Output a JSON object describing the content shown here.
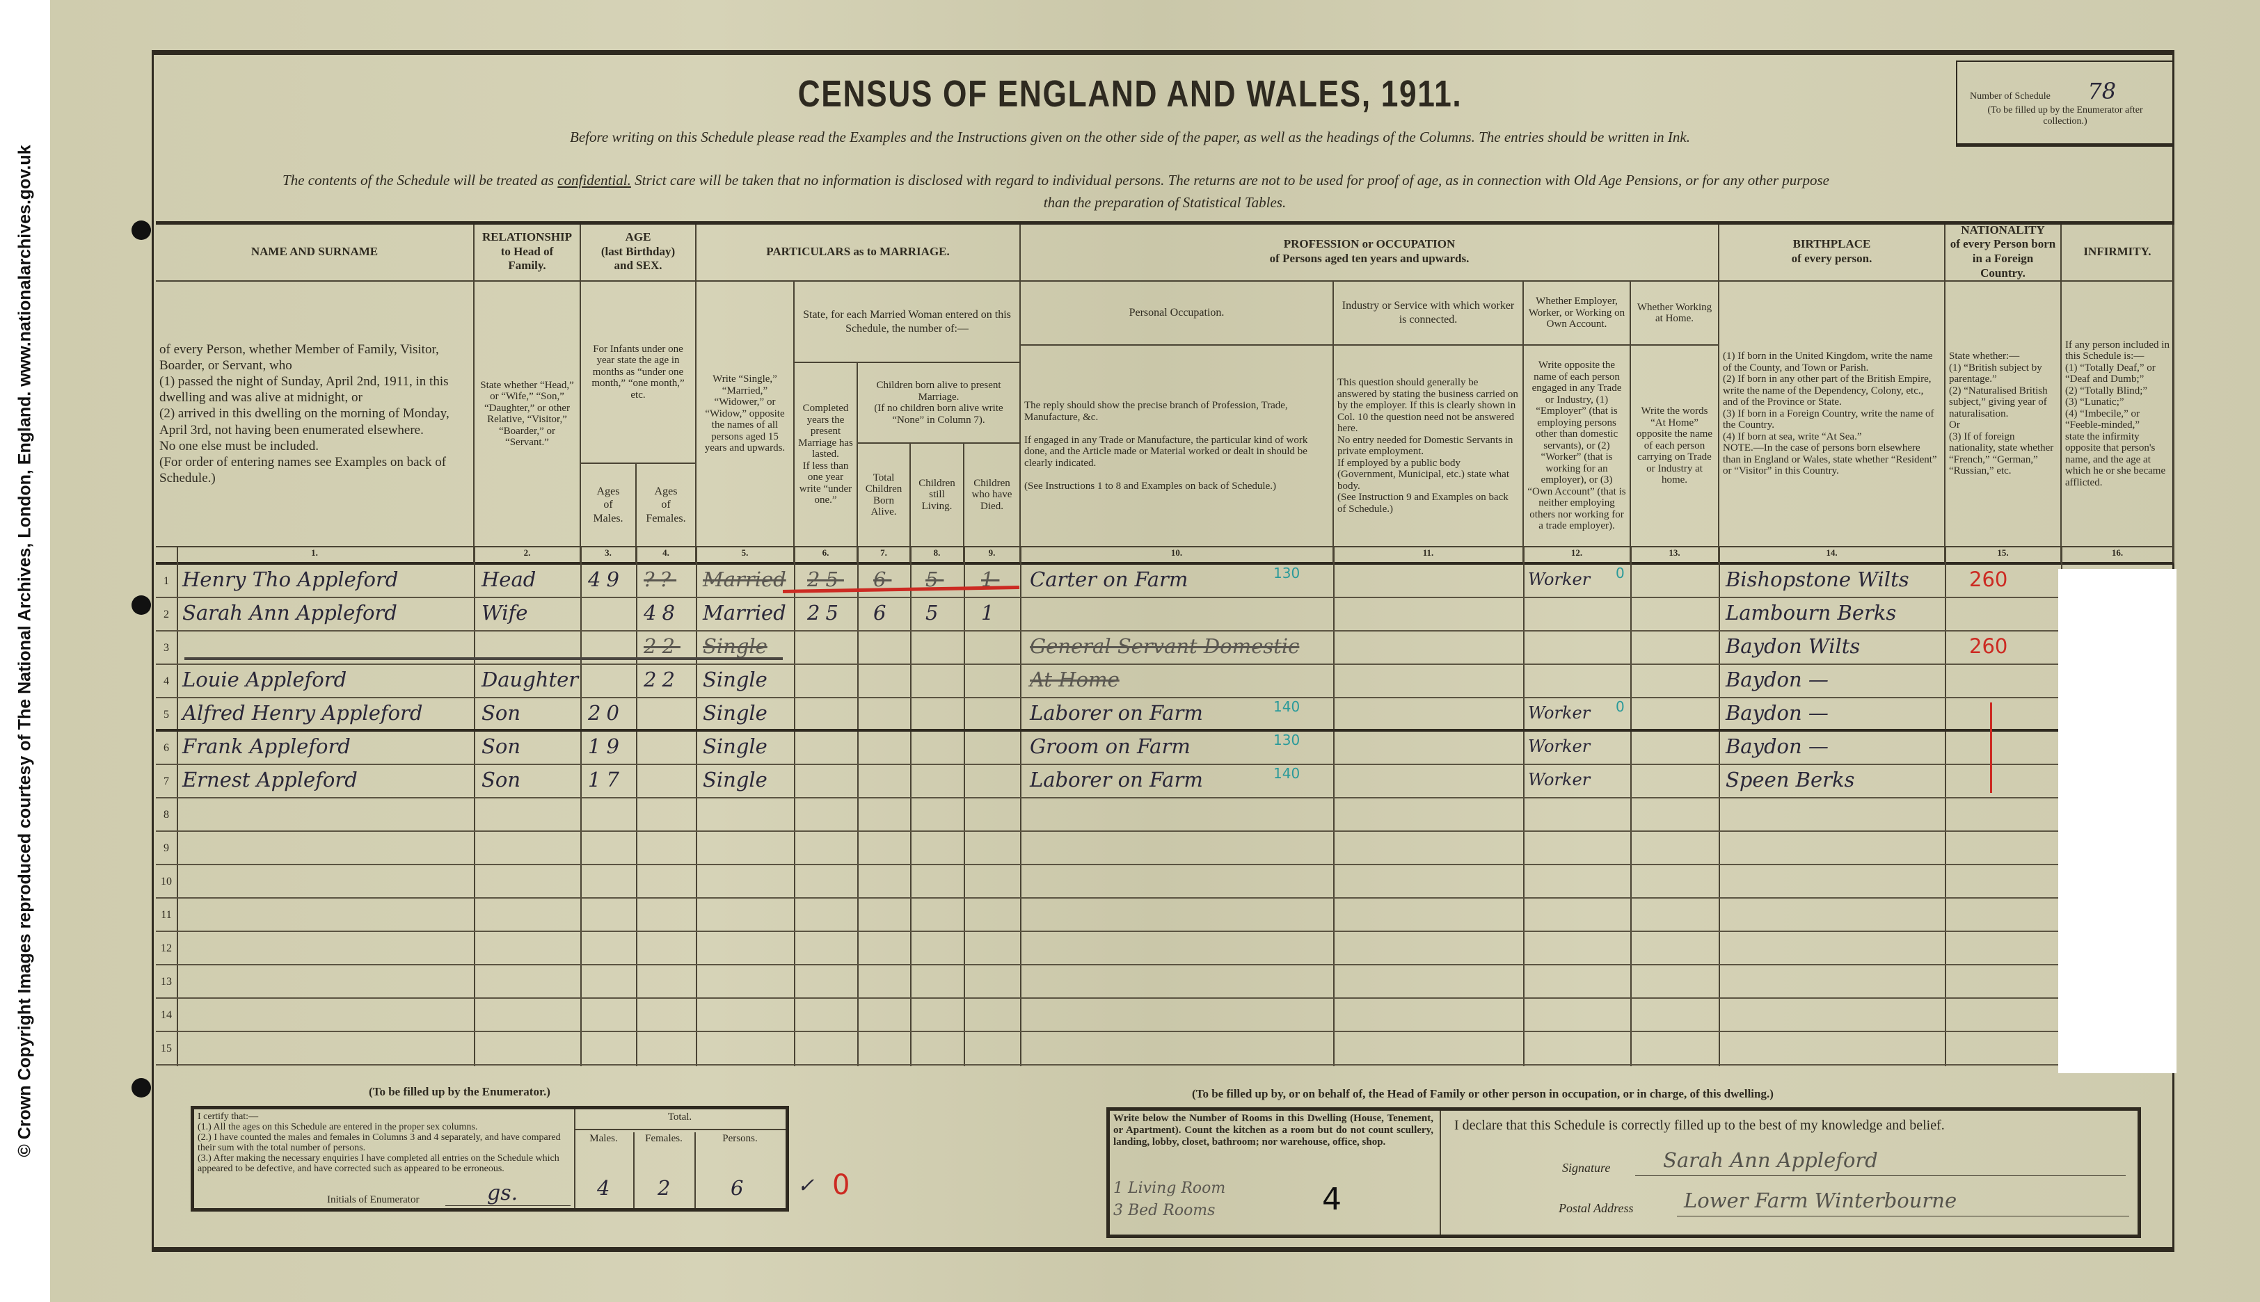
{
  "watermark": "© Crown Copyright Images reproduced courtesy of The National Archives, London, England. www.nationalarchives.gov.uk",
  "form": {
    "title": "CENSUS OF ENGLAND AND WALES, 1911.",
    "instructions": "Before writing on this Schedule please read the Examples and the Instructions given on the other side of the paper, as well as the headings of the Columns.  The entries should be written in Ink.",
    "confidential_pre": "The contents of the Schedule will be treated as ",
    "confidential_word": "confidential.",
    "confidential_post": "  Strict care will be taken that no information is disclosed with regard to individual persons.  The returns are not to be used for proof of age, as in connection with Old Age Pensions, or for any other purpose",
    "confidential_end": "than the preparation of Statistical Tables.",
    "schedule_number_label": "Number of Schedule",
    "schedule_number": "78",
    "schedule_number_note": "(To be filled up by the Enumerator after collection.)"
  },
  "headers": {
    "name_title": "NAME AND SURNAME",
    "name_body": "of every Person, whether Member of Family, Visitor, Boarder, or Servant, who\n(1) passed the night of Sunday, April 2nd, 1911, in this dwelling and was alive at midnight, or\n(2) arrived in this dwelling on the morning of Monday, April 3rd, not having been enumerated elsewhere.\nNo one else must be included.\n(For order of entering names see Examples on back of Schedule.)",
    "rel_title": "RELATIONSHIP\nto Head of\nFamily.",
    "rel_body": "State whether “Head,” or “Wife,” “Son,” “Daughter,” or other Relative, “Visitor,” “Boarder,” or “Servant.”",
    "age_title": "AGE\n(last Birthday)\nand SEX.",
    "age_body": "For Infants under one year state the age in months as “under one month,” “one month,” etc.",
    "age_males": "Ages\nof\nMales.",
    "age_females": "Ages\nof\nFemales.",
    "mar_title": "PARTICULARS as to MARRIAGE.",
    "mar_write": "Write “Single,” “Married,” “Widower,” or “Widow,” opposite the names of all persons aged 15 years and upwards.",
    "mar_state": "State, for each Married Woman entered on this Schedule, the number of:—",
    "mar_years": "Completed years the present Marriage has lasted.\nIf less than one year write “under one.”",
    "mar_children": "Children born alive to present Marriage.\n(If no children born alive write “None” in Column 7).",
    "mar_total": "Total Children Born Alive.",
    "mar_living": "Children still Living.",
    "mar_died": "Children who have Died.",
    "occ_title": "PROFESSION or OCCUPATION\nof Persons aged ten years and upwards.",
    "occ_personal": "Personal Occupation.",
    "occ_personal_body": "The reply should show the precise branch of Profession, Trade, Manufacture, &c.\n\nIf engaged in any Trade or Manufacture, the particular kind of work done, and the Article made or Material worked or dealt in should be clearly indicated.\n\n(See Instructions 1 to 8 and Examples on back of Schedule.)",
    "occ_industry": "Industry or Service with which worker is connected.",
    "occ_industry_body": "This question should generally be answered by stating the business carried on by the employer. If this is clearly shown in Col. 10 the question need not be answered here.\nNo entry needed for Domestic Servants in private employment.\nIf employed by a public body (Government, Municipal, etc.) state what body.\n(See Instruction 9 and Examples on back of Schedule.)",
    "occ_status": "Whether Employer, Worker, or Working on Own Account.",
    "occ_status_body": "Write opposite the name of each person engaged in any Trade or Industry, (1) “Employer” (that is employing persons other than domestic servants), or (2) “Worker” (that is working for an employer), or (3) “Own Account” (that is neither employing others nor working for a trade employer).",
    "occ_home": "Whether Working at Home.",
    "occ_home_body": "Write the words “At Home” opposite the name of each person carrying on Trade or Industry at home.",
    "birth_title": "BIRTHPLACE\nof every person.",
    "birth_body": "(1) If born in the United Kingdom, write the name of the County, and Town or Parish.\n(2) If born in any other part of the British Empire, write the name of the Dependency, Colony, etc., and of the Province or State.\n(3) If born in a Foreign Country, write the name of the Country.\n(4) If born at sea, write “At Sea.”\nNOTE.—In the case of persons born elsewhere than in England or Wales, state whether “Resident” or “Visitor” in this Country.",
    "nat_title": "NATIONALITY\nof every Person born in a Foreign Country.",
    "nat_body": "State whether:—\n(1) “British subject by parentage.”\n(2) “Naturalised British subject,” giving year of naturalisation.\nOr\n(3) If of foreign nationality, state whether “French,” “German,” “Russian,” etc.",
    "inf_title": "INFIRMITY.",
    "inf_body": "If any person included in this Schedule is:—\n(1) “Totally Deaf,” or “Deaf and Dumb;”\n(2) “Totally Blind;”\n(3) “Lunatic;”\n(4) “Imbecile,” or “Feeble-minded,”\nstate the infirmity opposite that person's name, and the age at which he or she became afflicted."
  },
  "column_numbers": [
    "1.",
    "2.",
    "3.",
    "4.",
    "5.",
    "6.",
    "7.",
    "8.",
    "9.",
    "10.",
    "11.",
    "12.",
    "13.",
    "14.",
    "15.",
    "16."
  ],
  "rows": [
    {
      "n": "1",
      "name": "Henry Tho Appleford",
      "relationship": "Head",
      "age_m": "49",
      "age_f": "??",
      "marital": "Married",
      "years": "25",
      "total": "6",
      "living": "5",
      "died": "1",
      "occupation": "Carter on Farm",
      "occ_code": "130",
      "status": "Worker",
      "status_code": "0",
      "birthplace": "Bishopstone Wilts",
      "nationality": "260",
      "struck": [
        "age_f",
        "marital",
        "years",
        "total",
        "living",
        "died"
      ]
    },
    {
      "n": "2",
      "name": "Sarah Ann Appleford",
      "relationship": "Wife",
      "age_f": "48",
      "marital": "Married",
      "years": "25",
      "total": "6",
      "living": "5",
      "died": "1",
      "birthplace": "Lambourn Berks"
    },
    {
      "n": "3",
      "name": "",
      "age_f": "22",
      "marital": "Single",
      "occupation": "General Servant Domestic",
      "birthplace": "Baydon Wilts",
      "nationality": "260",
      "struck": [
        "age_f",
        "marital",
        "occupation"
      ]
    },
    {
      "n": "4",
      "name": "Louie Appleford",
      "relationship": "Daughter",
      "age_f": "22",
      "marital": "Single",
      "occupation": "At Home",
      "birthplace": "Baydon —",
      "struck": [
        "occupation"
      ]
    },
    {
      "n": "5",
      "name": "Alfred Henry Appleford",
      "relationship": "Son",
      "age_m": "20",
      "marital": "Single",
      "occupation": "Laborer on Farm",
      "occ_code": "140",
      "status": "Worker",
      "status_code": "0",
      "birthplace": "Baydon —"
    },
    {
      "n": "6",
      "name": "Frank Appleford",
      "relationship": "Son",
      "age_m": "19",
      "marital": "Single",
      "occupation": "Groom on Farm",
      "occ_code": "130",
      "status": "Worker",
      "birthplace": "Baydon —"
    },
    {
      "n": "7",
      "name": "Ernest Appleford",
      "relationship": "Son",
      "age_m": "17",
      "marital": "Single",
      "occupation": "Laborer on Farm",
      "occ_code": "140",
      "status": "Worker",
      "birthplace": "Speen Berks"
    },
    {
      "n": "8"
    },
    {
      "n": "9"
    },
    {
      "n": "10"
    },
    {
      "n": "11"
    },
    {
      "n": "12"
    },
    {
      "n": "13"
    },
    {
      "n": "14"
    },
    {
      "n": "15"
    }
  ],
  "enumerator": {
    "caption": "(To be filled up by the Enumerator.)",
    "certify": "I certify that:—\n(1.) All the ages on this Schedule are entered in the proper sex columns.\n(2.) I have counted the males and females in Columns 3 and 4 separately, and have compared their sum with the total number of persons.\n(3.) After making the necessary enquiries I have completed all entries on the Schedule which appeared to be defective, and have corrected such as appeared to be erroneous.",
    "initials_label": "Initials of Enumerator",
    "initials": "gs.",
    "total_label": "Total.",
    "males_label": "Males.",
    "females_label": "Females.",
    "persons_label": "Persons.",
    "males": "4",
    "females": "2",
    "persons": "6",
    "check": "✓",
    "red_mark": "0"
  },
  "householder": {
    "caption": "(To be filled up by, or on behalf of, the Head of Family or other person in occupation, or in charge, of this dwelling.)",
    "rooms_instructions": "Write below the Number of Rooms in this Dwelling (House, Tenement, or Apartment). Count the kitchen as a room but do not count scullery, landing, lobby, closet, bathroom; nor warehouse, office, shop.",
    "rooms_line1": "1 Living Room",
    "rooms_line2": "3 Bed Rooms",
    "rooms_total": "4",
    "declaration": "I declare that this Schedule is correctly filled up to the best of my knowledge and belief.",
    "signature_label": "Signature",
    "signature": "Sarah Ann Appleford",
    "address_label": "Postal Address",
    "address": "Lower Farm Winterbourne"
  },
  "colors": {
    "paper": "#d2cfb2",
    "ink": "#2a2738",
    "enumerator_red": "#cc2a22",
    "enumerator_teal": "#2a9a9a"
  }
}
